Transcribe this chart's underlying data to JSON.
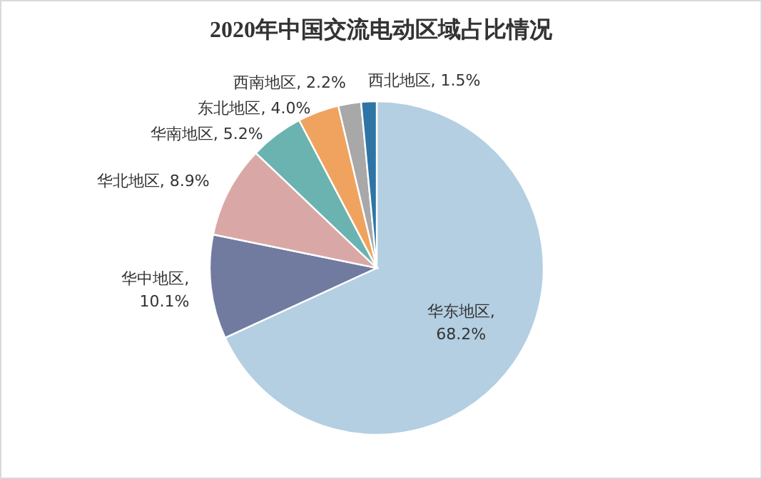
{
  "chart_data": {
    "type": "pie",
    "title": "2020年中国交流电动区域占比情况",
    "categories": [
      "华东地区",
      "华中地区",
      "华北地区",
      "华南地区",
      "东北地区",
      "西南地区",
      "西北地区"
    ],
    "values": [
      68.2,
      10.1,
      8.9,
      5.2,
      4.0,
      2.2,
      1.5
    ],
    "colors": [
      "#b4cfe2",
      "#717ba0",
      "#d9a8a6",
      "#6ab3b0",
      "#f0a35e",
      "#a8a8a8",
      "#2e75a6"
    ],
    "value_labels": [
      ",\n68.2%",
      ",\n10.1%",
      ", 8.9%",
      ", 5.2%",
      ", 4.0%",
      ", 2.2%",
      ", 1.5%"
    ]
  }
}
